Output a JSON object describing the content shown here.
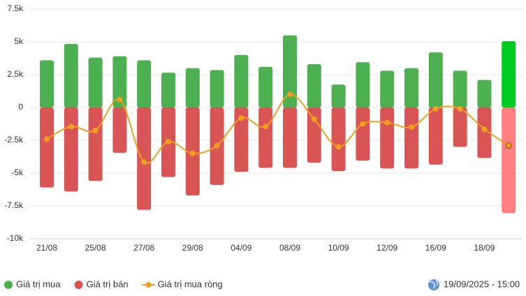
{
  "chart_data": {
    "type": "bar-line",
    "categories": [
      "21/08",
      null,
      "25/08",
      null,
      "27/08",
      null,
      "29/08",
      null,
      "04/09",
      null,
      "08/09",
      null,
      "10/09",
      null,
      "12/09",
      null,
      "16/09",
      null,
      "18/09",
      null
    ],
    "series": [
      {
        "name": "Giá trị mua",
        "type": "bar",
        "color": "#4caf50",
        "highlight_color": "#00cc22",
        "values": [
          3600,
          4850,
          3800,
          3900,
          3600,
          2650,
          3000,
          2850,
          4000,
          3100,
          5500,
          3300,
          1750,
          3450,
          2800,
          3000,
          4200,
          2800,
          2100,
          5050
        ]
      },
      {
        "name": "Giá trị bán",
        "type": "bar",
        "color": "#d95454",
        "highlight_color": "#ff8080",
        "values": [
          -6100,
          -6400,
          -5600,
          -3450,
          -7800,
          -5300,
          -6700,
          -5900,
          -4900,
          -4600,
          -4600,
          -4200,
          -4850,
          -4050,
          -4650,
          -4650,
          -4350,
          -3000,
          -3850,
          -8050
        ]
      },
      {
        "name": "Giá trị mua ròng",
        "type": "line",
        "color": "#f0a020",
        "values": [
          -2400,
          -1450,
          -1750,
          600,
          -4150,
          -2600,
          -3500,
          -2900,
          -800,
          -1450,
          1000,
          -900,
          -3000,
          -1250,
          -1150,
          -1500,
          -100,
          -100,
          -1650,
          -2900
        ]
      }
    ],
    "ylim": [
      -10000,
      7500
    ],
    "yticks": [
      {
        "value": -10000,
        "label": "-10k"
      },
      {
        "value": -7500,
        "label": "-7.5k"
      },
      {
        "value": -5000,
        "label": "-5k"
      },
      {
        "value": -2500,
        "label": "-2.5k"
      },
      0,
      {
        "value": 2500,
        "label": "2.5k"
      },
      {
        "value": 5000,
        "label": "5k"
      },
      {
        "value": 7500,
        "label": "7.5k"
      }
    ],
    "grid": true,
    "timestamp": "19/09/2025 - 15:00"
  }
}
